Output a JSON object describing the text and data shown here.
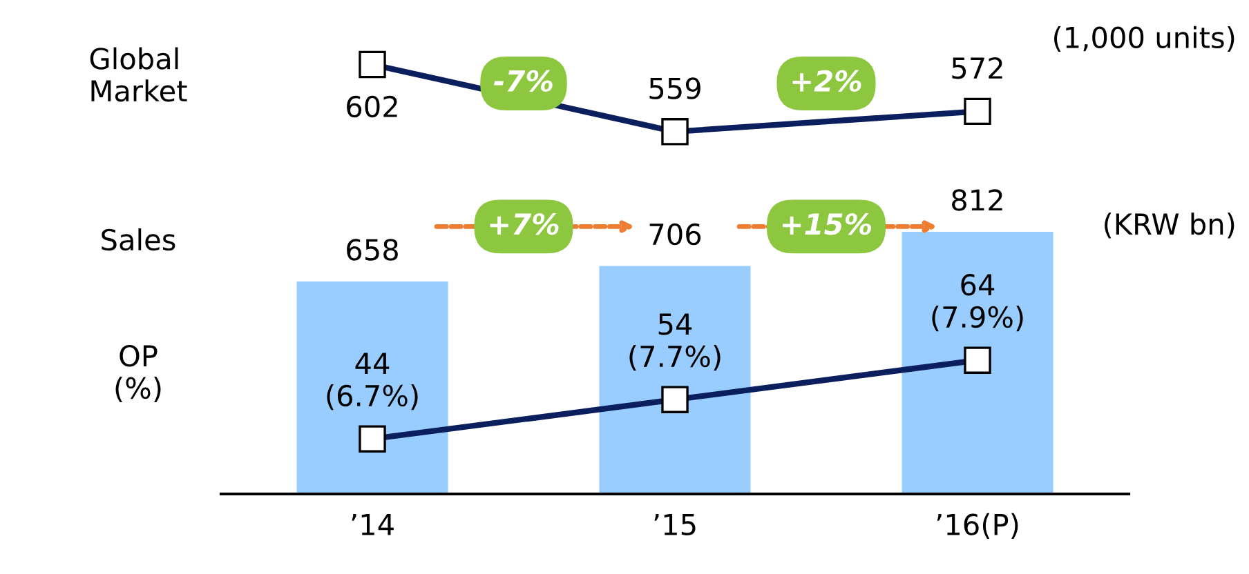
{
  "chart_data": [
    {
      "type": "line",
      "ylabel": "Global\nMarket",
      "categories": [
        null,
        null,
        null
      ],
      "tick_labels": false,
      "series": [
        {
          "color": "#0b1f5e",
          "values": [
            602,
            559,
            572
          ]
        }
      ],
      "marker": "square",
      "data_labels": true,
      "annotations": [
        "(1,000 units)",
        "-7%",
        "+2%"
      ]
    },
    {
      "type": "bar",
      "ylabel": "Sales",
      "y2label": "OP\n(%)",
      "categories": [
        "’14",
        "’15",
        "’16(P)"
      ],
      "series": [
        {
          "color": "#99ccff",
          "values": [
            658,
            706,
            812
          ]
        },
        {
          "type": "line",
          "axis": "y2",
          "color": "#0b1f5e",
          "values": [
            44,
            54,
            64
          ],
          "value_labels": [
            "44\n(6.7%)",
            "54\n(7.7%)",
            "64\n(7.9%)"
          ]
        }
      ],
      "marker": "square",
      "data_labels": true,
      "annotations": [
        "(KRW bn)",
        "+7%",
        "+15%"
      ]
    }
  ]
}
